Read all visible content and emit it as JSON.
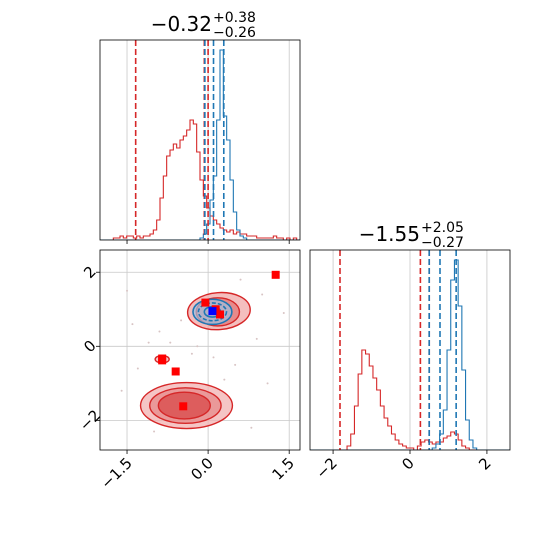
{
  "chart_data": {
    "type": "corner",
    "colors": {
      "red": "#d62728",
      "blue": "#1f77b4",
      "marker_red": "#ff0000",
      "marker_blue": "#0000ff",
      "grid": "#c8c8c8"
    },
    "titles": [
      {
        "main": "−0.32",
        "sup": "+0.38",
        "sub": "−0.26"
      },
      {
        "main": "−1.55",
        "sup": "+2.05",
        "sub": "−0.27"
      }
    ],
    "axes": {
      "x": {
        "range": [
          -2.0,
          1.7
        ],
        "ticks": [
          -1.5,
          0.0,
          1.5
        ],
        "tick_labels": [
          "−1.5",
          "0.0",
          "1.5"
        ]
      },
      "y": {
        "range": [
          -2.8,
          2.6
        ],
        "ticks": [
          2,
          0,
          -2
        ],
        "tick_labels": [
          "2",
          "0",
          "−2"
        ]
      },
      "x2": {
        "range": [
          -2.6,
          2.6
        ],
        "ticks": [
          -2,
          0,
          2
        ],
        "tick_labels": [
          "−2",
          "0",
          "2"
        ]
      }
    },
    "hist1": {
      "red_lines": [
        -1.34,
        -0.07,
        0.0
      ],
      "blue_lines": [
        -0.06,
        0.1,
        0.29
      ],
      "red_counts": [
        0,
        0,
        0,
        0,
        0.01,
        0.01,
        0.02,
        0.01,
        0.02,
        0.02,
        0.01,
        0.02,
        0.01,
        0.02,
        0.02,
        0.03,
        0.05,
        0.1,
        0.21,
        0.32,
        0.42,
        0.45,
        0.48,
        0.46,
        0.5,
        0.52,
        0.55,
        0.6,
        0.58,
        0.44,
        0.3,
        0.22,
        0.16,
        0.12,
        0.1,
        0.08,
        0.06,
        0.05,
        0.04,
        0.05,
        0.03,
        0.04,
        0.03,
        0.03,
        0.02,
        0.02,
        0.02,
        0.01,
        0.01,
        0.01,
        0.01,
        0.01,
        0.02,
        0.01,
        0.01,
        0,
        0.01,
        0,
        0.01,
        0
      ],
      "blue_counts": [
        0,
        0,
        0,
        0,
        0,
        0,
        0,
        0,
        0,
        0,
        0,
        0,
        0,
        0,
        0,
        0,
        0,
        0,
        0,
        0,
        0,
        0,
        0,
        0,
        0,
        0,
        0,
        0,
        0,
        0,
        0.01,
        0.03,
        0.08,
        0.2,
        0.32,
        0.6,
        0.95,
        0.62,
        0.5,
        0.3,
        0.14,
        0.05,
        0.02,
        0.01,
        0,
        0,
        0,
        0,
        0,
        0,
        0,
        0,
        0,
        0,
        0,
        0,
        0,
        0,
        0,
        0
      ]
    },
    "hist2": {
      "red_lines": [
        -1.82,
        0.27,
        0.5
      ],
      "blue_lines": [
        0.5,
        0.78,
        1.2
      ],
      "red_counts": [
        0,
        0,
        0,
        0,
        0,
        0,
        0,
        0,
        0,
        0,
        0.02,
        0.08,
        0.22,
        0.38,
        0.5,
        0.48,
        0.42,
        0.36,
        0.3,
        0.22,
        0.16,
        0.12,
        0.08,
        0.05,
        0.03,
        0.02,
        0.01,
        0.01,
        0,
        0.02,
        0.04,
        0.05,
        0.04,
        0.03,
        0.04,
        0.04,
        0.06,
        0.07,
        0.09,
        0.08,
        0.05,
        0.02,
        0.01,
        0,
        0,
        0,
        0,
        0,
        0,
        0,
        0,
        0,
        0,
        0
      ],
      "blue_counts": [
        0,
        0,
        0,
        0,
        0,
        0,
        0,
        0,
        0,
        0,
        0,
        0,
        0,
        0,
        0,
        0,
        0,
        0,
        0,
        0,
        0,
        0,
        0,
        0,
        0,
        0,
        0,
        0,
        0,
        0,
        0,
        0,
        0,
        0.01,
        0.03,
        0.08,
        0.2,
        0.5,
        0.85,
        0.95,
        0.72,
        0.4,
        0.15,
        0.05,
        0.01,
        0,
        0,
        0,
        0,
        0,
        0,
        0,
        0,
        0
      ]
    },
    "scatter": {
      "red_markers": [
        [
          1.25,
          1.93
        ],
        [
          -0.05,
          1.18
        ],
        [
          -0.85,
          -0.33
        ],
        [
          -0.85,
          -0.38
        ],
        [
          -0.6,
          -0.68
        ],
        [
          -0.46,
          -1.62
        ],
        [
          0.14,
          1.0
        ],
        [
          0.22,
          0.86
        ]
      ],
      "blue_markers": [
        [
          0.08,
          0.95
        ]
      ],
      "red_contours": [
        {
          "cx": 0.2,
          "cy": 0.95,
          "rx": 0.58,
          "ry": 0.5,
          "rot": -4
        },
        {
          "cx": 0.18,
          "cy": 0.93,
          "rx": 0.4,
          "ry": 0.38,
          "rot": 0
        },
        {
          "cx": -0.4,
          "cy": -1.6,
          "rx": 0.85,
          "ry": 0.62,
          "rot": 0
        },
        {
          "cx": -0.42,
          "cy": -1.6,
          "rx": 0.66,
          "ry": 0.48,
          "rot": 0
        },
        {
          "cx": -0.44,
          "cy": -1.6,
          "rx": 0.48,
          "ry": 0.36,
          "rot": 0
        },
        {
          "cx": -0.85,
          "cy": -0.35,
          "rx": 0.13,
          "ry": 0.1,
          "rot": 0
        }
      ],
      "blue_contours": [
        {
          "cx": 0.08,
          "cy": 0.93,
          "rx": 0.36,
          "ry": 0.34,
          "rot": 0
        },
        {
          "cx": 0.08,
          "cy": 0.93,
          "rx": 0.26,
          "ry": 0.24,
          "rot": 0
        },
        {
          "cx": 0.08,
          "cy": 0.93,
          "rx": 0.15,
          "ry": 0.14,
          "rot": 0
        }
      ]
    }
  }
}
